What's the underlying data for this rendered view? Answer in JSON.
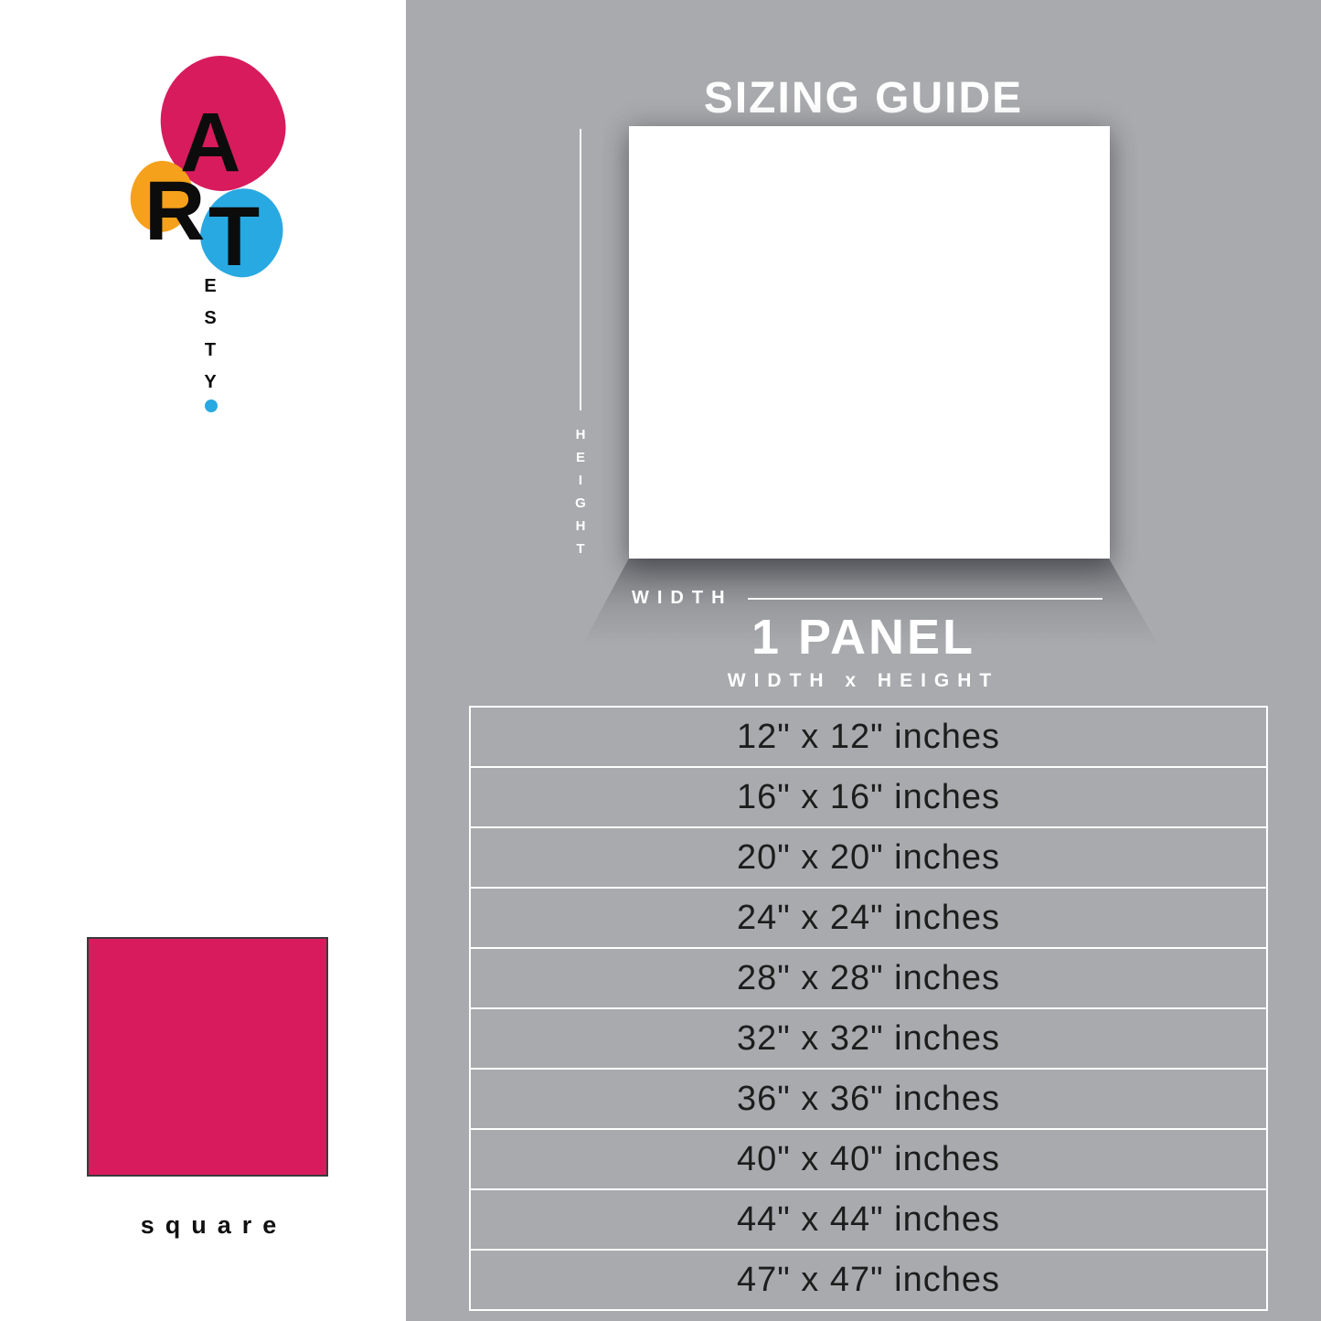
{
  "colors": {
    "pink": "#d81b5c",
    "orange": "#f5a11c",
    "blue": "#29a9e1",
    "background_gray": "#a8aaad",
    "panel_white": "#ffffff",
    "text_dark": "#1d1d1d"
  },
  "brand": {
    "letters": [
      "A",
      "R",
      "T"
    ],
    "vertical_letters": [
      "E",
      "S",
      "T",
      "Y"
    ]
  },
  "shape_preview": {
    "label": "square"
  },
  "sizing_guide": {
    "title": "SIZING GUIDE",
    "height_label": "HEIGHT",
    "width_label": "WIDTH",
    "panel_label": "1 PANEL",
    "format_label": "WIDTH x HEIGHT",
    "sizes": [
      "12\" x 12\" inches",
      "16\" x 16\" inches",
      "20\" x 20\" inches",
      "24\" x 24\" inches",
      "28\" x 28\" inches",
      "32\" x 32\" inches",
      "36\" x 36\" inches",
      "40\" x 40\" inches",
      "44\" x 44\" inches",
      "47\" x 47\" inches"
    ]
  }
}
